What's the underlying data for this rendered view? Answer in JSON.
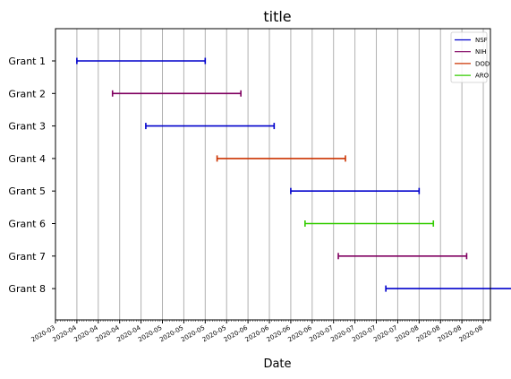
{
  "chart_data": {
    "type": "gantt",
    "title": "title",
    "xlabel": "Date",
    "ylabel": "",
    "xlim": [
      "2020-03-01",
      "2020-08-31"
    ],
    "x_tick_labels": [
      "2020-03",
      "2020-04",
      "2020-04",
      "2020-04",
      "2020-04",
      "2020-05",
      "2020-05",
      "2020-05",
      "2020-05",
      "2020-06",
      "2020-06",
      "2020-06",
      "2020-06",
      "2020-07",
      "2020-07",
      "2020-07",
      "2020-07",
      "2020-08",
      "2020-08",
      "2020-08",
      "2020-08"
    ],
    "grid": "vertical",
    "legend": {
      "placement": "top-right",
      "entries": [
        {
          "name": "NSF",
          "color": "#0000cc"
        },
        {
          "name": "NIH",
          "color": "#800060"
        },
        {
          "name": "DOD",
          "color": "#cc3300"
        },
        {
          "name": "ARO",
          "color": "#33cc00"
        }
      ]
    },
    "categories": [
      "Grant 1",
      "Grant 2",
      "Grant 3",
      "Grant 4",
      "Grant 5",
      "Grant 6",
      "Grant 7",
      "Grant 8"
    ],
    "tasks": [
      {
        "label": "Grant 1",
        "agency": "NSF",
        "start": "2020-03-10",
        "end": "2020-05-03"
      },
      {
        "label": "Grant 2",
        "agency": "NIH",
        "start": "2020-03-25",
        "end": "2020-05-18"
      },
      {
        "label": "Grant 3",
        "agency": "NSF",
        "start": "2020-04-08",
        "end": "2020-06-01"
      },
      {
        "label": "Grant 4",
        "agency": "DOD",
        "start": "2020-05-08",
        "end": "2020-07-01"
      },
      {
        "label": "Grant 5",
        "agency": "NSF",
        "start": "2020-06-08",
        "end": "2020-08-01"
      },
      {
        "label": "Grant 6",
        "agency": "ARO",
        "start": "2020-06-14",
        "end": "2020-08-07"
      },
      {
        "label": "Grant 7",
        "agency": "NIH",
        "start": "2020-06-28",
        "end": "2020-08-21"
      },
      {
        "label": "Grant 8",
        "agency": "NSF",
        "start": "2020-07-18",
        "end": "2020-09-10"
      }
    ]
  }
}
